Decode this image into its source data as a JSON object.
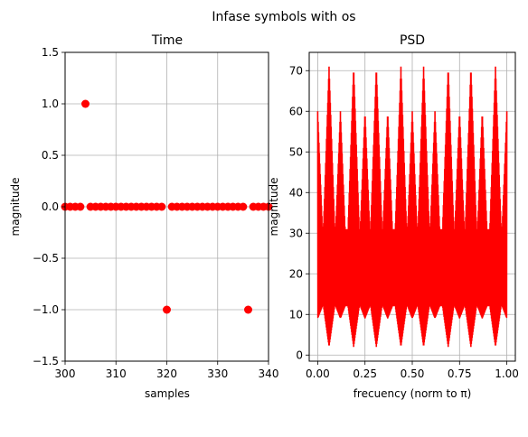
{
  "figure": {
    "suptitle": "Infase symbols with os"
  },
  "chart_data": [
    {
      "type": "scatter",
      "title": "Time",
      "xlabel": "samples",
      "ylabel": "magnitude",
      "xlim": [
        300,
        340
      ],
      "ylim": [
        -1.5,
        1.5
      ],
      "xticks": [
        "300",
        "310",
        "320",
        "330",
        "340"
      ],
      "yticks": [
        "1.5",
        "1.0",
        "0.5",
        "0.0",
        "−0.5",
        "−1.0",
        "−1.5"
      ],
      "grid": true,
      "color": "#ff0000",
      "series": [
        {
          "x": [
            300,
            301,
            302,
            303,
            304,
            305,
            306,
            307,
            308,
            309,
            310,
            311,
            312,
            313,
            314,
            315,
            316,
            317,
            318,
            319,
            320,
            321,
            322,
            323,
            324,
            325,
            326,
            327,
            328,
            329,
            330,
            331,
            332,
            333,
            334,
            335,
            336,
            337,
            338,
            339,
            340
          ],
          "y": [
            0,
            0,
            0,
            0,
            1,
            0,
            0,
            0,
            0,
            0,
            0,
            0,
            0,
            0,
            0,
            0,
            0,
            0,
            0,
            0,
            -1,
            0,
            0,
            0,
            0,
            0,
            0,
            0,
            0,
            0,
            0,
            0,
            0,
            0,
            0,
            0,
            -1,
            0,
            0,
            0,
            0
          ]
        }
      ]
    },
    {
      "type": "line",
      "title": "PSD",
      "xlabel": "frecuency (norm to π)",
      "ylabel": "magnitude",
      "xlim": [
        -0.045,
        1.045
      ],
      "ylim": [
        -1.5,
        74.5
      ],
      "xticks": [
        "0.00",
        "0.25",
        "0.50",
        "0.75",
        "1.00"
      ],
      "yticks": [
        "70",
        "60",
        "50",
        "40",
        "30",
        "20",
        "10",
        "0"
      ],
      "grid": true,
      "color": "#ff0000",
      "series": [
        {
          "description_range": [
            0,
            1
          ],
          "y_min": 2,
          "y_max": 71,
          "band_low": 12,
          "band_high": 31,
          "peak_positions": [
            0.06,
            0.19,
            0.31,
            0.44,
            0.56,
            0.69,
            0.81,
            0.94
          ],
          "secondary_peak_positions": [
            0.0,
            0.12,
            0.25,
            0.37,
            0.5,
            0.62,
            0.75,
            0.87,
            1.0
          ]
        }
      ]
    }
  ]
}
